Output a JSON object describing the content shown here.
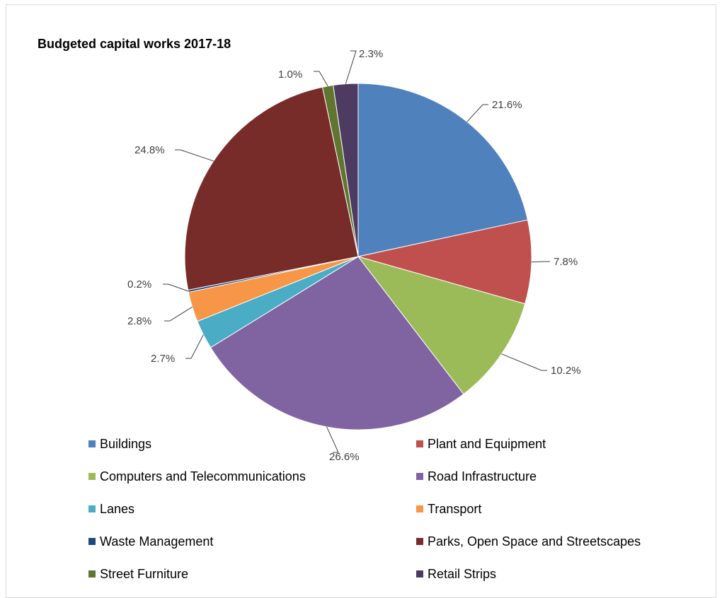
{
  "chart_data": {
    "type": "pie",
    "title": "Budgeted capital works 2017-18",
    "legend_position": "bottom",
    "slices": [
      {
        "name": "Buildings",
        "value": 21.6,
        "label": "21.6%",
        "color": "#4f81bd"
      },
      {
        "name": "Plant and Equipment",
        "value": 7.8,
        "label": "7.8%",
        "color": "#c0504d"
      },
      {
        "name": "Computers and Telecommunications",
        "value": 10.2,
        "label": "10.2%",
        "color": "#9bbb59"
      },
      {
        "name": "Road Infrastructure",
        "value": 26.6,
        "label": "26.6%",
        "color": "#8064a2"
      },
      {
        "name": "Lanes",
        "value": 2.7,
        "label": "2.7%",
        "color": "#4bacc6"
      },
      {
        "name": "Transport",
        "value": 2.8,
        "label": "2.8%",
        "color": "#f79646"
      },
      {
        "name": "Waste Management",
        "value": 0.2,
        "label": "0.2%",
        "color": "#1f497d"
      },
      {
        "name": "Parks, Open Space and Streetscapes",
        "value": 24.8,
        "label": "24.8%",
        "color": "#772c2a"
      },
      {
        "name": "Street Furniture",
        "value": 1.0,
        "label": "1.0%",
        "color": "#5f7530"
      },
      {
        "name": "Retail Strips",
        "value": 2.3,
        "label": "2.3%",
        "color": "#4d3b62"
      }
    ]
  }
}
